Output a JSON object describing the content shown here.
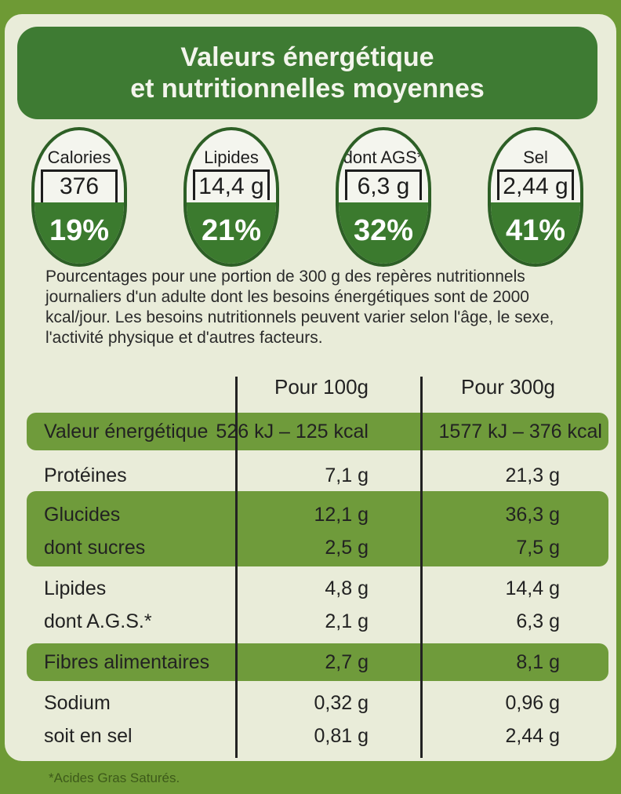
{
  "header": {
    "line1": "Valeurs énergétique",
    "line2": "et nutritionnelles moyennes"
  },
  "badges": [
    {
      "label": "Calories",
      "value": "376 kcal",
      "percent": "19%"
    },
    {
      "label": "Lipides",
      "value": "14,4 g",
      "percent": "21%"
    },
    {
      "label": "dont AGS*",
      "value": "6,3 g",
      "percent": "32%"
    },
    {
      "label": "Sel",
      "value": "2,44 g",
      "percent": "41%"
    }
  ],
  "note": "Pourcentages pour une portion de 300 g des repères nutritionnels journaliers d'un adulte dont les besoins énergétiques sont de 2000 kcal/jour. Les besoins nutritionnels peuvent varier selon l'âge, le sexe, l'activité physique et d'autres facteurs.",
  "table": {
    "headers": [
      "Pour 100g",
      "Pour 300g"
    ],
    "rows": [
      {
        "name": "Valeur énergétique",
        "v100": "526 kJ – 125 kcal",
        "v300": "1577 kJ – 376 kcal"
      },
      {
        "name": "Protéines",
        "v100": "7,1 g",
        "v300": "21,3 g"
      },
      {
        "name": "Glucides",
        "v100": "12,1 g",
        "v300": "36,3 g"
      },
      {
        "name": "dont sucres",
        "v100": "2,5 g",
        "v300": "7,5 g"
      },
      {
        "name": "Lipides",
        "v100": "4,8 g",
        "v300": "14,4 g"
      },
      {
        "name": "dont A.G.S.*",
        "v100": "2,1 g",
        "v300": "6,3 g"
      },
      {
        "name": "Fibres alimentaires",
        "v100": "2,7 g",
        "v300": "8,1 g"
      },
      {
        "name": "Sodium",
        "v100": "0,32 g",
        "v300": "0,96 g"
      },
      {
        "name": "soit en sel",
        "v100": "0,81 g",
        "v300": "2,44 g"
      }
    ]
  },
  "footnote": "*Acides Gras Saturés."
}
